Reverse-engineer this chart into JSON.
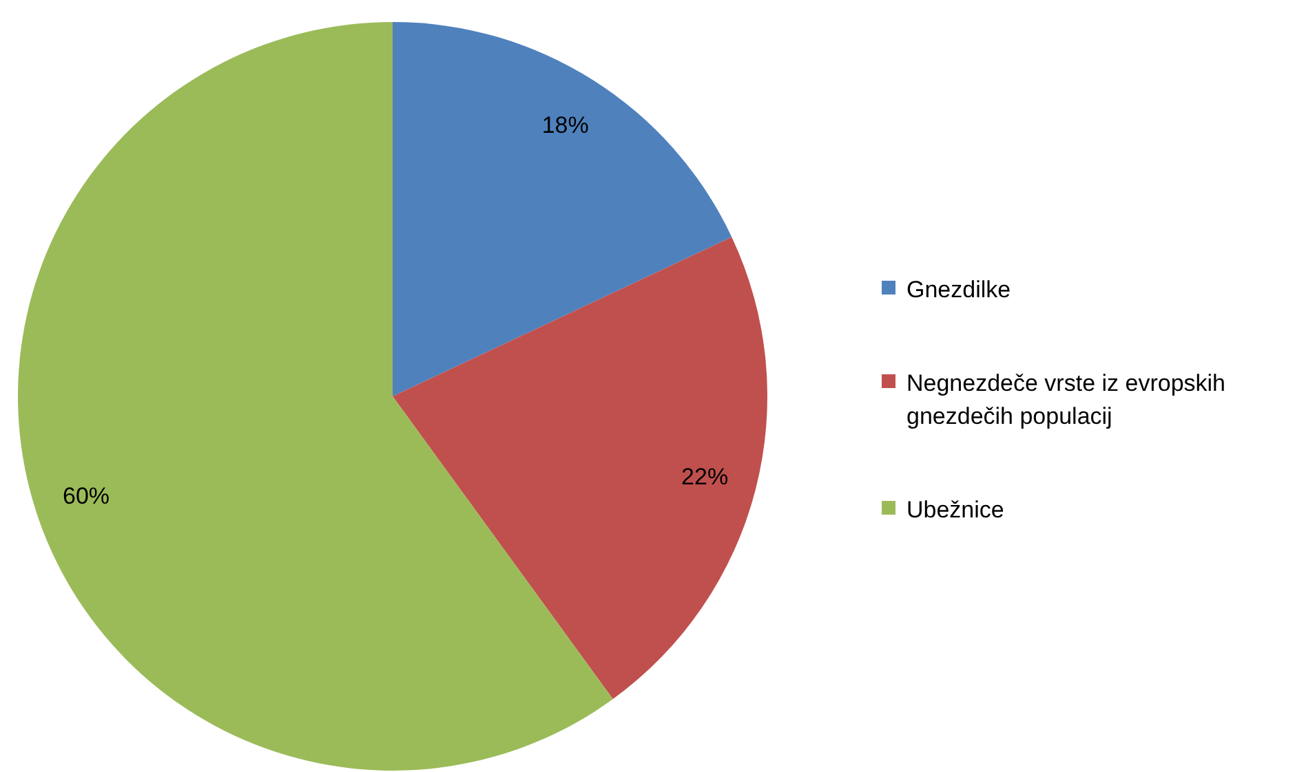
{
  "chart_data": {
    "type": "pie",
    "categories": [
      "Gnezdilke",
      "Negnezdeče vrste iz evropskih gnezdečih populacij",
      "Ubežnice"
    ],
    "values": [
      18,
      22,
      60
    ],
    "value_labels": [
      "18%",
      "22%",
      "60%"
    ],
    "colors": [
      "#4f81bd",
      "#c0504d",
      "#9bbb59"
    ],
    "legend": "right"
  }
}
